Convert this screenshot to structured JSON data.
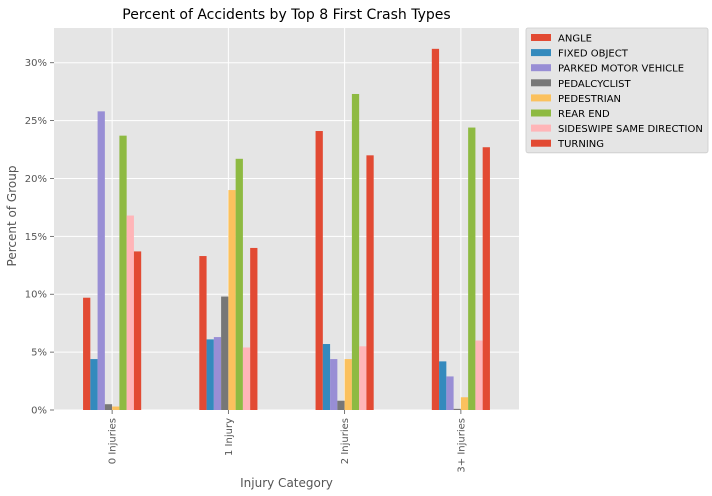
{
  "chart_data": {
    "type": "bar",
    "title": "Percent of Accidents by Top 8 First Crash Types",
    "xlabel": "Injury Category",
    "ylabel": "Percent of Group",
    "categories": [
      "0 Injuries",
      "1 Injury",
      "2 Injuries",
      "3+ Injuries"
    ],
    "ylim": [
      0,
      0.33
    ],
    "yticks": [
      {
        "value": 0,
        "label": "0%"
      },
      {
        "value": 0.05,
        "label": "5%"
      },
      {
        "value": 0.1,
        "label": "10%"
      },
      {
        "value": 0.15,
        "label": "15%"
      },
      {
        "value": 0.2,
        "label": "20%"
      },
      {
        "value": 0.25,
        "label": "25%"
      },
      {
        "value": 0.3,
        "label": "30%"
      }
    ],
    "grid": true,
    "legend_position": "outside top-right",
    "series": [
      {
        "name": "ANGLE",
        "color": "#E24A33",
        "values": [
          0.097,
          0.133,
          0.241,
          0.312
        ]
      },
      {
        "name": "FIXED OBJECT",
        "color": "#348ABD",
        "values": [
          0.044,
          0.061,
          0.057,
          0.042
        ]
      },
      {
        "name": "PARKED MOTOR VEHICLE",
        "color": "#988ED5",
        "values": [
          0.258,
          0.063,
          0.044,
          0.029
        ]
      },
      {
        "name": "PEDALCYCLIST",
        "color": "#777777",
        "values": [
          0.005,
          0.098,
          0.008,
          0.001
        ]
      },
      {
        "name": "PEDESTRIAN",
        "color": "#FBC15E",
        "values": [
          0.003,
          0.19,
          0.044,
          0.011
        ]
      },
      {
        "name": "REAR END",
        "color": "#8EBA42",
        "values": [
          0.237,
          0.217,
          0.273,
          0.244
        ]
      },
      {
        "name": "SIDESWIPE SAME DIRECTION",
        "color": "#FFB5B8",
        "values": [
          0.168,
          0.054,
          0.055,
          0.06
        ]
      },
      {
        "name": "TURNING",
        "color": "#E24A33",
        "values": [
          0.137,
          0.14,
          0.22,
          0.227
        ]
      }
    ]
  }
}
